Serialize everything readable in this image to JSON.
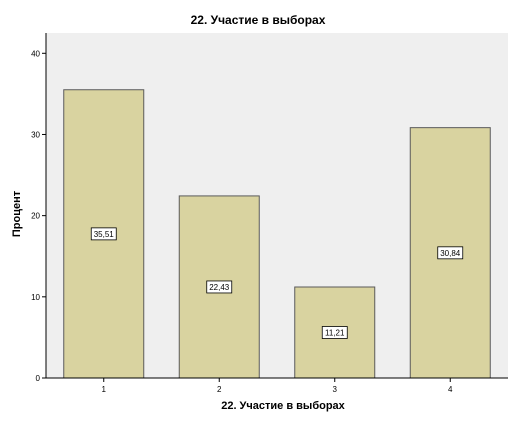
{
  "colors": {
    "plot_bg": "#efefef",
    "bar_fill": "#d9d3a0",
    "bar_stroke": "#5a5a5a",
    "axis": "#000000",
    "label_box_bg": "#ffffff",
    "label_box_stroke": "#000000"
  },
  "chart_data": {
    "type": "bar",
    "title": "22. Участие в выборах",
    "xlabel": "22. Участие в выборах",
    "ylabel": "Процент",
    "categories": [
      "1",
      "2",
      "3",
      "4"
    ],
    "values": [
      35.51,
      22.43,
      11.21,
      30.84
    ],
    "data_labels": [
      "35,51",
      "22,43",
      "11,21",
      "30,84"
    ],
    "y_ticks": [
      0,
      10,
      20,
      30,
      40
    ],
    "y_tick_labels": [
      "0",
      "10",
      "20",
      "30",
      "40"
    ],
    "ylim": [
      0,
      42.5
    ],
    "grid": false,
    "legend": "none"
  }
}
